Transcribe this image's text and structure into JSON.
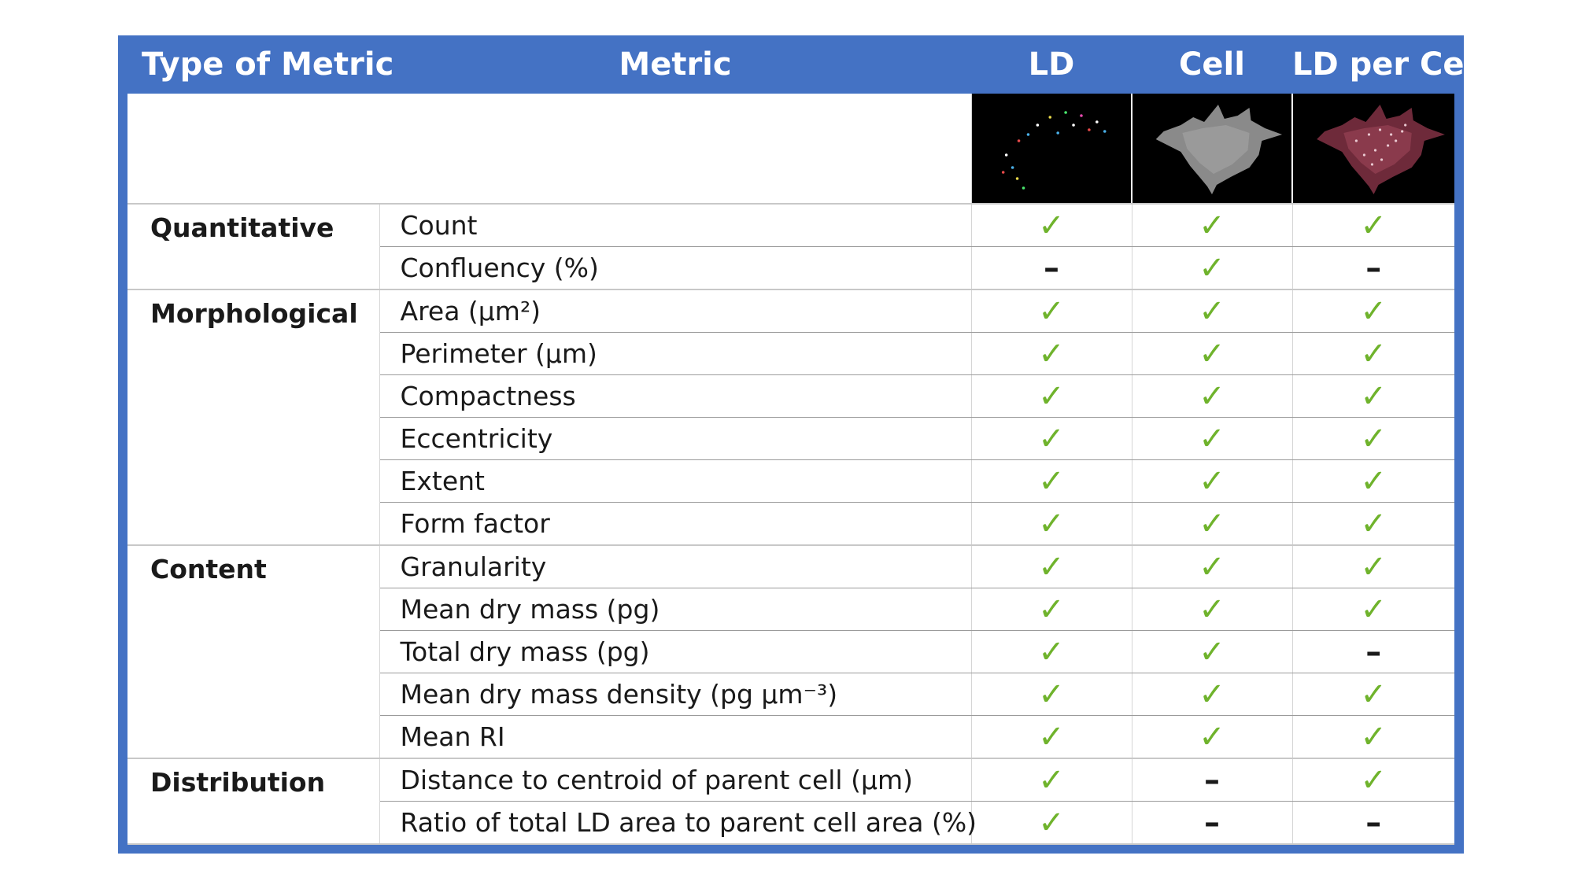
{
  "header": [
    "Type of Metric",
    "Metric",
    "LD",
    "Cell",
    "LD per Cell"
  ],
  "symbols": {
    "yes": "✓",
    "no": "–"
  },
  "colors": {
    "header_bg": "#4472c4",
    "check": "#6fb32c"
  },
  "images": [
    "LD segmentation thumbnail",
    "Cell segmentation thumbnail",
    "LD per Cell overlay thumbnail"
  ],
  "groups": [
    {
      "type": "Quantitative",
      "rows": [
        {
          "metric": "Count",
          "marks": [
            "yes",
            "yes",
            "yes"
          ]
        },
        {
          "metric": "Confluency (%)",
          "marks": [
            "no",
            "yes",
            "no"
          ]
        }
      ]
    },
    {
      "type": "Morphological",
      "rows": [
        {
          "metric": "Area (µm²)",
          "marks": [
            "yes",
            "yes",
            "yes"
          ]
        },
        {
          "metric": "Perimeter (µm)",
          "marks": [
            "yes",
            "yes",
            "yes"
          ]
        },
        {
          "metric": "Compactness",
          "marks": [
            "yes",
            "yes",
            "yes"
          ]
        },
        {
          "metric": "Eccentricity",
          "marks": [
            "yes",
            "yes",
            "yes"
          ]
        },
        {
          "metric": "Extent",
          "marks": [
            "yes",
            "yes",
            "yes"
          ]
        },
        {
          "metric": "Form factor",
          "marks": [
            "yes",
            "yes",
            "yes"
          ]
        }
      ]
    },
    {
      "type": "Content",
      "rows": [
        {
          "metric": "Granularity",
          "marks": [
            "yes",
            "yes",
            "yes"
          ]
        },
        {
          "metric": "Mean dry mass (pg)",
          "marks": [
            "yes",
            "yes",
            "yes"
          ]
        },
        {
          "metric": "Total dry mass (pg)",
          "marks": [
            "yes",
            "yes",
            "no"
          ]
        },
        {
          "metric": "Mean dry mass density (pg µm⁻³)",
          "marks": [
            "yes",
            "yes",
            "yes"
          ]
        },
        {
          "metric": "Mean RI",
          "marks": [
            "yes",
            "yes",
            "yes"
          ]
        }
      ]
    },
    {
      "type": "Distribution",
      "rows": [
        {
          "metric": "Distance to centroid of parent cell (µm)",
          "marks": [
            "yes",
            "no",
            "yes"
          ]
        },
        {
          "metric": "Ratio of total LD area to parent cell area (%)",
          "marks": [
            "yes",
            "no",
            "no"
          ]
        }
      ]
    }
  ]
}
